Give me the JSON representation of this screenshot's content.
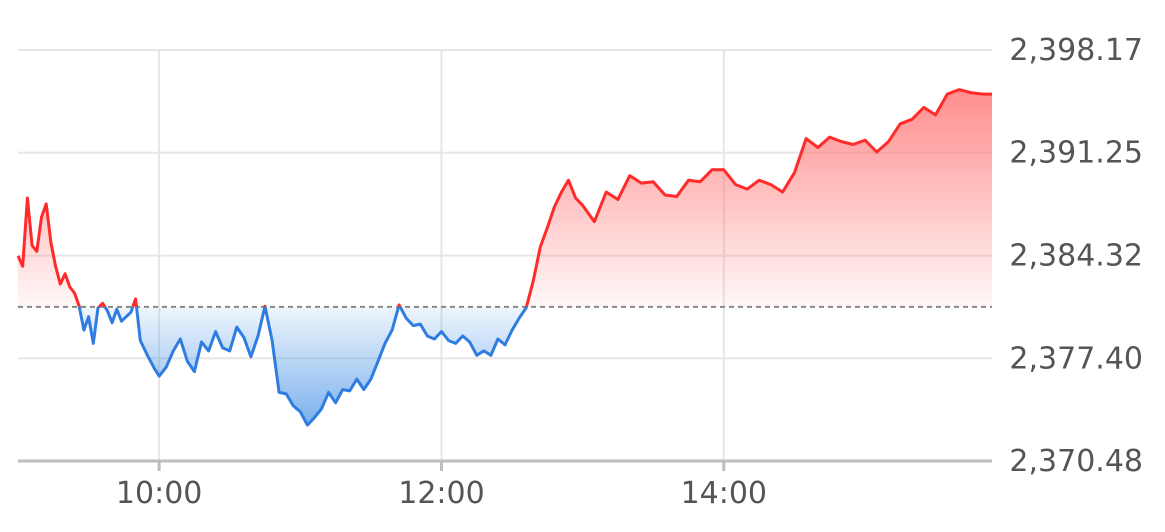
{
  "chart_data": {
    "type": "area",
    "title": "",
    "xlabel": "",
    "ylabel": "",
    "x_ticks": [
      "10:00",
      "12:00",
      "14:00"
    ],
    "x_tick_hours": [
      10,
      12,
      14
    ],
    "y_ticks": [
      "2,398.17",
      "2,391.25",
      "2,384.32",
      "2,377.40",
      "2,370.48"
    ],
    "y_tick_values": [
      2398.17,
      2391.25,
      2384.32,
      2377.4,
      2370.48
    ],
    "ylim": [
      2370.48,
      2398.17
    ],
    "xlim": [
      "9:00",
      "15:54"
    ],
    "reference_value": 2380.86,
    "grid": true,
    "colors": {
      "up_line": "#ff2a2a",
      "up_fill_top": "#ff6b6b",
      "down_line": "#2f7de1",
      "down_fill_bottom": "#5c9ee8",
      "reference_line": "#888888"
    },
    "series": [
      {
        "x": [
          "9:00",
          "9:02",
          "9:04",
          "9:06",
          "9:08",
          "9:10",
          "9:12",
          "9:14",
          "9:16",
          "9:18",
          "9:20",
          "9:22",
          "9:24",
          "9:26",
          "9:28",
          "9:30",
          "9:32",
          "9:34",
          "9:36",
          "9:38",
          "9:40",
          "9:42",
          "9:44",
          "9:46",
          "9:48",
          "9:50",
          "9:52",
          "9:55",
          "9:58",
          "10:00",
          "10:03",
          "10:06",
          "10:09",
          "10:12",
          "10:15",
          "10:18",
          "10:21",
          "10:24",
          "10:27",
          "10:30",
          "10:33",
          "10:36",
          "10:39",
          "10:42",
          "10:45",
          "10:48",
          "10:51",
          "10:54",
          "10:57",
          "11:00",
          "11:03",
          "11:06",
          "11:09",
          "11:12",
          "11:15",
          "11:18",
          "11:21",
          "11:24",
          "11:27",
          "11:30",
          "11:33",
          "11:36",
          "11:39",
          "11:42",
          "11:45",
          "11:48",
          "11:51",
          "11:54",
          "11:57",
          "12:00",
          "12:03",
          "12:06",
          "12:09",
          "12:12",
          "12:15",
          "12:18",
          "12:21",
          "12:24",
          "12:27",
          "12:30",
          "12:33",
          "12:36",
          "12:39",
          "12:42",
          "12:45",
          "12:48",
          "12:51",
          "12:54",
          "12:57",
          "13:00",
          "13:05",
          "13:10",
          "13:15",
          "13:20",
          "13:25",
          "13:30",
          "13:35",
          "13:40",
          "13:45",
          "13:50",
          "13:55",
          "14:00",
          "14:05",
          "14:10",
          "14:15",
          "14:20",
          "14:25",
          "14:30",
          "14:35",
          "14:40",
          "14:45",
          "14:50",
          "14:55",
          "15:00",
          "15:05",
          "15:10",
          "15:15",
          "15:20",
          "15:25",
          "15:30",
          "15:35",
          "15:40",
          "15:45",
          "15:50",
          "15:54"
        ],
        "values": [
          2384.3,
          2383.6,
          2388.2,
          2385.0,
          2384.6,
          2386.9,
          2387.8,
          2385.2,
          2383.6,
          2382.4,
          2383.1,
          2382.2,
          2381.8,
          2380.9,
          2379.3,
          2380.2,
          2378.4,
          2380.8,
          2381.1,
          2380.6,
          2379.8,
          2380.7,
          2379.9,
          2380.2,
          2380.5,
          2381.4,
          2378.6,
          2377.6,
          2376.7,
          2376.2,
          2376.8,
          2377.9,
          2378.7,
          2377.2,
          2376.5,
          2378.5,
          2377.9,
          2379.2,
          2378.1,
          2377.9,
          2379.5,
          2378.8,
          2377.5,
          2378.9,
          2380.9,
          2378.6,
          2375.1,
          2375.0,
          2374.2,
          2373.8,
          2372.9,
          2373.4,
          2374.0,
          2375.1,
          2374.4,
          2375.3,
          2375.2,
          2376.0,
          2375.3,
          2376.0,
          2377.2,
          2378.4,
          2379.3,
          2381.0,
          2380.1,
          2379.6,
          2379.7,
          2378.9,
          2378.7,
          2379.2,
          2378.6,
          2378.4,
          2378.9,
          2378.5,
          2377.6,
          2377.9,
          2377.6,
          2378.7,
          2378.3,
          2379.3,
          2380.1,
          2380.8,
          2382.6,
          2384.9,
          2386.2,
          2387.6,
          2388.6,
          2389.4,
          2388.2,
          2387.7,
          2386.6,
          2388.6,
          2388.1,
          2389.7,
          2389.2,
          2389.3,
          2388.4,
          2388.3,
          2389.4,
          2389.3,
          2390.1,
          2390.1,
          2389.1,
          2388.8,
          2389.4,
          2389.1,
          2388.6,
          2389.9,
          2392.2,
          2391.6,
          2392.3,
          2392.0,
          2391.8,
          2392.1,
          2391.3,
          2392.0,
          2393.2,
          2393.5,
          2394.3,
          2393.8,
          2395.2,
          2395.5,
          2395.3,
          2395.2,
          2395.2
        ]
      }
    ]
  }
}
